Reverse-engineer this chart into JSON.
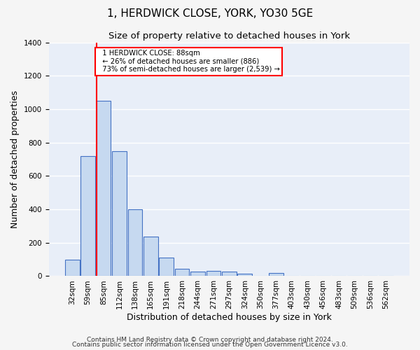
{
  "title": "1, HERDWICK CLOSE, YORK, YO30 5GE",
  "subtitle": "Size of property relative to detached houses in York",
  "xlabel": "Distribution of detached houses by size in York",
  "ylabel": "Number of detached properties",
  "footnote1": "Contains HM Land Registry data © Crown copyright and database right 2024.",
  "footnote2": "Contains public sector information licensed under the Open Government Licence v3.0.",
  "bin_labels": [
    "32sqm",
    "59sqm",
    "85sqm",
    "112sqm",
    "138sqm",
    "165sqm",
    "191sqm",
    "218sqm",
    "244sqm",
    "271sqm",
    "297sqm",
    "324sqm",
    "350sqm",
    "377sqm",
    "403sqm",
    "430sqm",
    "456sqm",
    "483sqm",
    "509sqm",
    "536sqm",
    "562sqm"
  ],
  "bar_values": [
    100,
    720,
    1050,
    750,
    400,
    235,
    110,
    45,
    25,
    30,
    25,
    15,
    0,
    20,
    0,
    0,
    0,
    0,
    0,
    0,
    0
  ],
  "bar_color": "#c6d9f0",
  "bar_edge_color": "#4472c4",
  "red_line_bin_index": 2,
  "annotation_line1": "  1 HERDWICK CLOSE: 88sqm",
  "annotation_line2": "  ← 26% of detached houses are smaller (886)",
  "annotation_line3": "  73% of semi-detached houses are larger (2,539) →",
  "ylim": [
    0,
    1400
  ],
  "yticks": [
    0,
    200,
    400,
    600,
    800,
    1000,
    1200,
    1400
  ],
  "plot_bg_color": "#e8eef8",
  "grid_color": "#ffffff",
  "fig_bg_color": "#f5f5f5",
  "title_fontsize": 11,
  "subtitle_fontsize": 9.5,
  "axis_label_fontsize": 9,
  "tick_fontsize": 7.5,
  "footnote_fontsize": 6.5
}
